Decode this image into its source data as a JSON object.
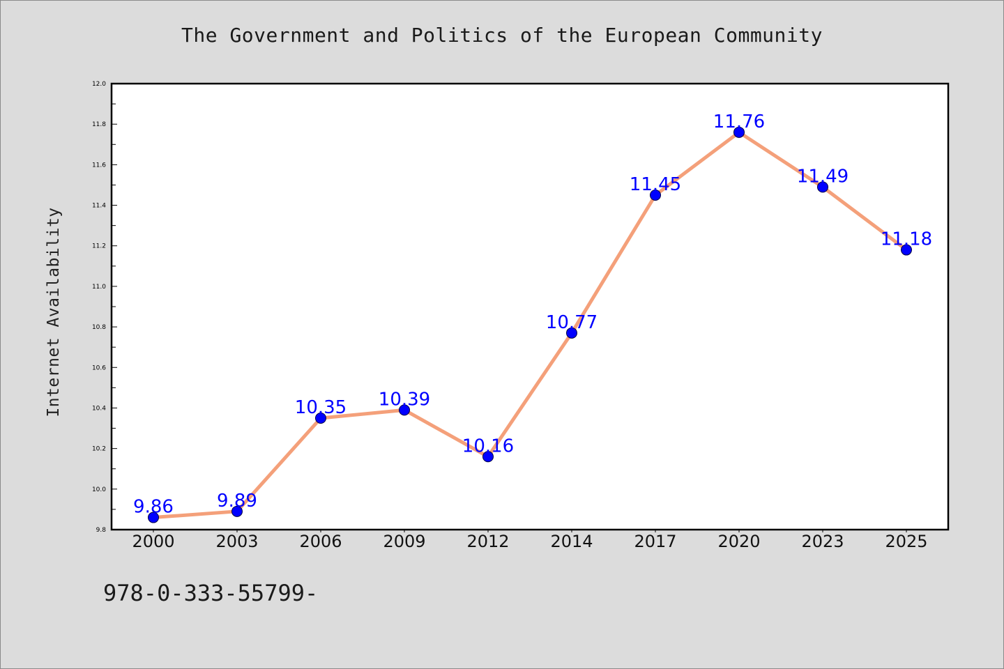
{
  "page": {
    "isbn_text": "978-0-333-55799-"
  },
  "chart_data": {
    "type": "line",
    "title": "The Government and Politics of the European Community",
    "xlabel": "",
    "ylabel": "Internet Availability",
    "categories": [
      "2000",
      "2003",
      "2006",
      "2009",
      "2012",
      "2014",
      "2017",
      "2020",
      "2023",
      "2025"
    ],
    "series": [
      {
        "values": [
          9.86,
          9.89,
          10.35,
          10.39,
          10.16,
          10.77,
          11.45,
          11.76,
          11.49,
          11.18
        ],
        "data_labels": [
          "9.86",
          "9.89",
          "10.35",
          "10.39",
          "10.16",
          "10.77",
          "11.45",
          "11.76",
          "11.49",
          "11.18"
        ],
        "line_color": "#f4a07a",
        "marker_color": "#0000ff"
      }
    ],
    "ylim": [
      9.8,
      12.0
    ],
    "yticks": [
      "9.8",
      "10.0",
      "10.2",
      "10.4",
      "10.6",
      "10.8",
      "11.0",
      "11.2",
      "11.4",
      "11.6",
      "11.8",
      "12.0"
    ],
    "grid": false,
    "legend": "none",
    "colors": {
      "background": "#dcdcdc",
      "plot_background": "#ffffff",
      "line": "#f4a07a",
      "marker": "#0000ff",
      "data_label": "#0000ff"
    }
  }
}
